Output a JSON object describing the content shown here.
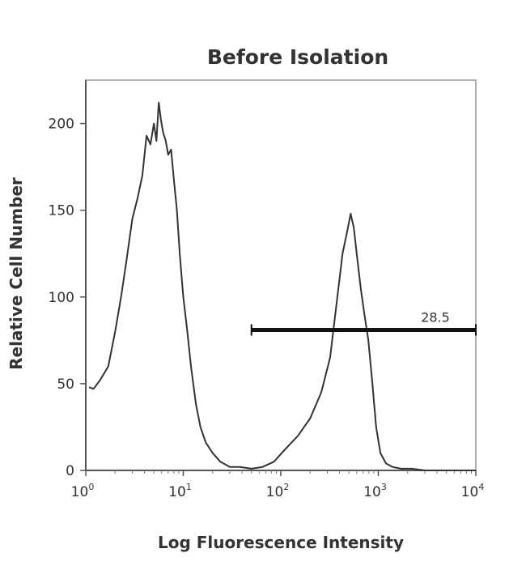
{
  "chart_data": {
    "type": "line",
    "title": "Before Isolation",
    "xlabel": "Log Fluorescence Intensity",
    "ylabel": "Relative Cell Number",
    "x_scale": "log",
    "xlim": [
      1,
      10000
    ],
    "ylim": [
      0,
      225
    ],
    "x_ticks": [
      {
        "base": "10",
        "exp": "0",
        "value": 1
      },
      {
        "base": "10",
        "exp": "1",
        "value": 10
      },
      {
        "base": "10",
        "exp": "2",
        "value": 100
      },
      {
        "base": "10",
        "exp": "3",
        "value": 1000
      },
      {
        "base": "10",
        "exp": "4",
        "value": 10000
      }
    ],
    "y_ticks": [
      0,
      50,
      100,
      150,
      200
    ],
    "grid": false,
    "line_color": "#333333",
    "series": [
      {
        "x": [
          1.08,
          1.2,
          1.4,
          1.7,
          2.0,
          2.3,
          2.6,
          3.0,
          3.4,
          3.8,
          4.2,
          4.6,
          5.0,
          5.3,
          5.6,
          5.9,
          6.2,
          6.6,
          7.0,
          7.5,
          8.0,
          8.6,
          9.2,
          10,
          11,
          12,
          13.5,
          15,
          17,
          20,
          24,
          30,
          38,
          50,
          65,
          85,
          110,
          150,
          200,
          260,
          320,
          380,
          430,
          480,
          520,
          560,
          600,
          660,
          720,
          790,
          870,
          950,
          1050,
          1200,
          1400,
          1700,
          2200,
          3000,
          5000,
          7500,
          10000
        ],
        "y": [
          48,
          47,
          52,
          60,
          80,
          100,
          120,
          145,
          157,
          170,
          193,
          188,
          200,
          190,
          212,
          202,
          195,
          190,
          182,
          185,
          168,
          150,
          125,
          100,
          80,
          60,
          38,
          25,
          16,
          10,
          5,
          2,
          2,
          1,
          2,
          5,
          12,
          20,
          30,
          45,
          65,
          100,
          125,
          138,
          148,
          140,
          125,
          105,
          90,
          75,
          50,
          25,
          10,
          4,
          2,
          1,
          1,
          0,
          0,
          0,
          0
        ]
      }
    ],
    "gate": {
      "x_start": 50,
      "x_end": 10000,
      "y": 81,
      "label": "28.5"
    }
  }
}
